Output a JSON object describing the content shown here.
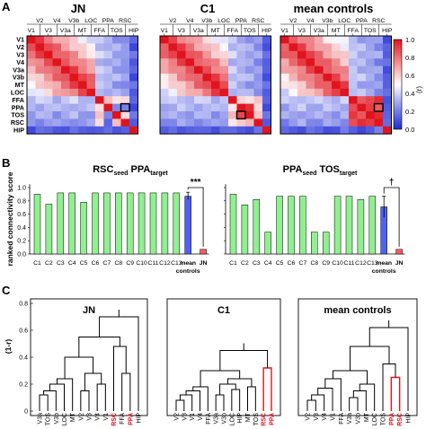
{
  "panel_labels": [
    "A",
    "B",
    "C"
  ],
  "region_labels": [
    "V1",
    "V2",
    "V3",
    "V4",
    "V3a",
    "V3b",
    "MT",
    "LOC",
    "FFA",
    "PPA",
    "TOS",
    "RSC",
    "HIP"
  ],
  "colors": {
    "red": "#e0141e",
    "blue": "#1c28d8",
    "bar_green": "#90f090",
    "bar_blue": "#5060f0",
    "bar_red": "#f06060",
    "highlight_red": "#e0141e"
  },
  "chart_data": [
    {
      "type": "heatmap",
      "title": "JN",
      "top_labels_upper": [
        "V2",
        "V4",
        "V3b",
        "LOC",
        "PPA",
        "RSC"
      ],
      "top_labels_lower": [
        "V1",
        "V3",
        "V3a",
        "MT",
        "FFA",
        "TOS",
        "HIP"
      ],
      "row_labels": [
        "V1",
        "V2",
        "V3",
        "V4",
        "V3a",
        "V3b",
        "MT",
        "LOC",
        "FFA",
        "PPA",
        "TOS",
        "RSC",
        "HIP"
      ],
      "highlight_cell": {
        "row": "PPA",
        "col": "RSC"
      }
    },
    {
      "type": "heatmap",
      "title": "C1",
      "top_labels_upper": [
        "V2",
        "V4",
        "V3b",
        "LOC",
        "PPA",
        "RSC"
      ],
      "top_labels_lower": [
        "V1",
        "V3",
        "V3a",
        "MT",
        "FFA",
        "TOS",
        "HIP"
      ],
      "highlight_cell": {
        "row": "TOS",
        "col": "PPA"
      }
    },
    {
      "type": "heatmap",
      "title": "mean controls",
      "top_labels_upper": [
        "V2",
        "V4",
        "V3b",
        "LOC",
        "PPA",
        "RSC"
      ],
      "top_labels_lower": [
        "V1",
        "V3",
        "V3a",
        "MT",
        "FFA",
        "TOS",
        "HIP"
      ],
      "highlight_cell": {
        "row": "PPA",
        "col": "RSC"
      },
      "colorbar": {
        "ticks": [
          "1.0",
          "0.8",
          "0.6",
          "0.4",
          "0.2",
          "0.0"
        ],
        "label": "(r)",
        "range": [
          0,
          1
        ]
      }
    },
    {
      "type": "bar",
      "title_main": "RSC",
      "title_sub1": "seed",
      "title_mid": " PPA",
      "title_sub2": "target",
      "ylabel": "ranked connectivity score",
      "ylim": [
        0,
        1
      ],
      "yticks": [
        "1.0",
        "0.8",
        "0.6",
        "0.4",
        "0.2",
        "0.0"
      ],
      "categories": [
        "C1",
        "C2",
        "C3",
        "C4",
        "C5",
        "C6",
        "C7",
        "C8",
        "C9",
        "C10",
        "C11",
        "C12",
        "C13",
        "mean controls",
        "JN"
      ],
      "values": [
        0.9,
        0.75,
        0.92,
        0.92,
        0.78,
        0.92,
        0.92,
        0.92,
        0.92,
        0.92,
        0.92,
        0.92,
        0.92,
        0.87,
        0.07
      ],
      "error": {
        "index": 13,
        "low": 0.82,
        "high": 0.93
      },
      "significance": "***"
    },
    {
      "type": "bar",
      "title_main": "PPA",
      "title_sub1": "seed",
      "title_mid": " TOS",
      "title_sub2": "target",
      "categories": [
        "C1",
        "C2",
        "C3",
        "C4",
        "C5",
        "C6",
        "C7",
        "C8",
        "C9",
        "C10",
        "C11",
        "C12",
        "C13",
        "mean controls",
        "JN"
      ],
      "values": [
        0.9,
        0.74,
        0.82,
        0.33,
        0.87,
        0.87,
        0.87,
        0.33,
        0.33,
        0.87,
        0.87,
        0.82,
        0.87,
        0.71,
        0.07
      ],
      "error": {
        "index": 13,
        "low": 0.55,
        "high": 0.87
      },
      "significance": "†"
    },
    {
      "type": "dendrogram",
      "title": "JN",
      "ylabel": "(1-r)",
      "ylim": [
        0,
        0.8
      ],
      "yticks": [
        "0.8",
        "0.6",
        "0.4",
        "0.2",
        "0"
      ],
      "leaves": [
        "V3a",
        "TOS",
        "V3b",
        "LOC",
        "MT",
        "V2",
        "V3",
        "V4",
        "V1",
        "RSC",
        "FFA",
        "PPA",
        "HIP"
      ],
      "highlight_leaves": [
        "RSC",
        "PPA"
      ]
    },
    {
      "type": "dendrogram",
      "title": "C1",
      "leaves": [
        "V2",
        "V3",
        "V1",
        "V4",
        "FFA",
        "V3a",
        "V3b",
        "LOC",
        "HIP",
        "MT",
        "TOS",
        "RSC",
        "PPA"
      ],
      "highlight_leaves": [
        "RSC",
        "PPA"
      ]
    },
    {
      "type": "dendrogram",
      "title": "mean controls",
      "leaves": [
        "V2",
        "V3",
        "V4",
        "V1",
        "FFA",
        "V3a",
        "V3b",
        "MT",
        "LOC",
        "TOS",
        "PPA",
        "RSC",
        "HIP"
      ],
      "highlight_leaves": [
        "PPA",
        "RSC"
      ]
    }
  ]
}
